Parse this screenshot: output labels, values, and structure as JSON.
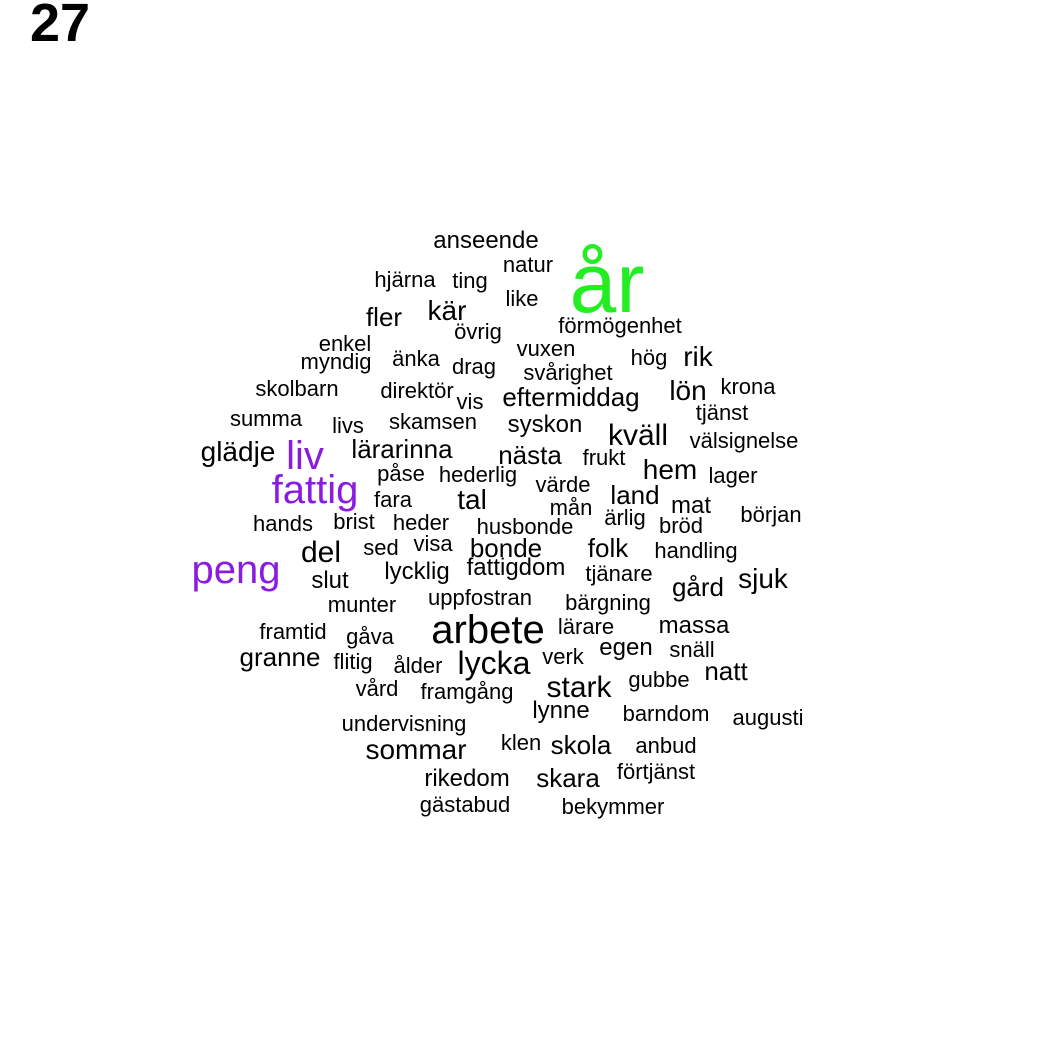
{
  "panel_number": "27",
  "colors": {
    "default": "#000000",
    "green": "#22ee22",
    "purple": "#8a1ce0"
  },
  "words": [
    {
      "text": "år",
      "color": "green"
    },
    {
      "text": "anseende"
    },
    {
      "text": "natur"
    },
    {
      "text": "hjärna"
    },
    {
      "text": "ting"
    },
    {
      "text": "like"
    },
    {
      "text": "fler"
    },
    {
      "text": "kär"
    },
    {
      "text": "förmögenhet"
    },
    {
      "text": "övrig"
    },
    {
      "text": "enkel"
    },
    {
      "text": "vuxen"
    },
    {
      "text": "myndig"
    },
    {
      "text": "änka"
    },
    {
      "text": "drag"
    },
    {
      "text": "hög"
    },
    {
      "text": "rik"
    },
    {
      "text": "svårighet"
    },
    {
      "text": "skolbarn"
    },
    {
      "text": "direktör"
    },
    {
      "text": "krona"
    },
    {
      "text": "lön"
    },
    {
      "text": "eftermiddag"
    },
    {
      "text": "vis"
    },
    {
      "text": "tjänst"
    },
    {
      "text": "summa"
    },
    {
      "text": "skamsen"
    },
    {
      "text": "livs"
    },
    {
      "text": "syskon"
    },
    {
      "text": "kväll"
    },
    {
      "text": "välsignelse"
    },
    {
      "text": "glädje"
    },
    {
      "text": "liv",
      "color": "purple"
    },
    {
      "text": "lärarinna"
    },
    {
      "text": "nästa"
    },
    {
      "text": "frukt"
    },
    {
      "text": "hem"
    },
    {
      "text": "påse"
    },
    {
      "text": "hederlig"
    },
    {
      "text": "lager"
    },
    {
      "text": "fattig",
      "color": "purple"
    },
    {
      "text": "värde"
    },
    {
      "text": "land"
    },
    {
      "text": "fara"
    },
    {
      "text": "tal"
    },
    {
      "text": "mån"
    },
    {
      "text": "mat"
    },
    {
      "text": "början"
    },
    {
      "text": "hands"
    },
    {
      "text": "brist"
    },
    {
      "text": "heder"
    },
    {
      "text": "husbonde"
    },
    {
      "text": "ärlig"
    },
    {
      "text": "bröd"
    },
    {
      "text": "sed"
    },
    {
      "text": "visa"
    },
    {
      "text": "bonde"
    },
    {
      "text": "folk"
    },
    {
      "text": "handling"
    },
    {
      "text": "del"
    },
    {
      "text": "peng",
      "color": "purple"
    },
    {
      "text": "fattigdom"
    },
    {
      "text": "tjänare"
    },
    {
      "text": "sjuk"
    },
    {
      "text": "slut"
    },
    {
      "text": "lycklig"
    },
    {
      "text": "gård"
    },
    {
      "text": "munter"
    },
    {
      "text": "uppfostran"
    },
    {
      "text": "bärgning"
    },
    {
      "text": "framtid"
    },
    {
      "text": "arbete"
    },
    {
      "text": "lärare"
    },
    {
      "text": "massa"
    },
    {
      "text": "gåva"
    },
    {
      "text": "egen"
    },
    {
      "text": "snäll"
    },
    {
      "text": "granne"
    },
    {
      "text": "flitig"
    },
    {
      "text": "lycka"
    },
    {
      "text": "verk"
    },
    {
      "text": "ålder"
    },
    {
      "text": "natt"
    },
    {
      "text": "vård"
    },
    {
      "text": "gubbe"
    },
    {
      "text": "stark"
    },
    {
      "text": "framgång"
    },
    {
      "text": "lynne"
    },
    {
      "text": "barndom"
    },
    {
      "text": "augusti"
    },
    {
      "text": "undervisning"
    },
    {
      "text": "klen"
    },
    {
      "text": "skola"
    },
    {
      "text": "anbud"
    },
    {
      "text": "sommar"
    },
    {
      "text": "förtjänst"
    },
    {
      "text": "rikedom"
    },
    {
      "text": "skara"
    },
    {
      "text": "gästabud"
    },
    {
      "text": "bekymmer"
    }
  ]
}
